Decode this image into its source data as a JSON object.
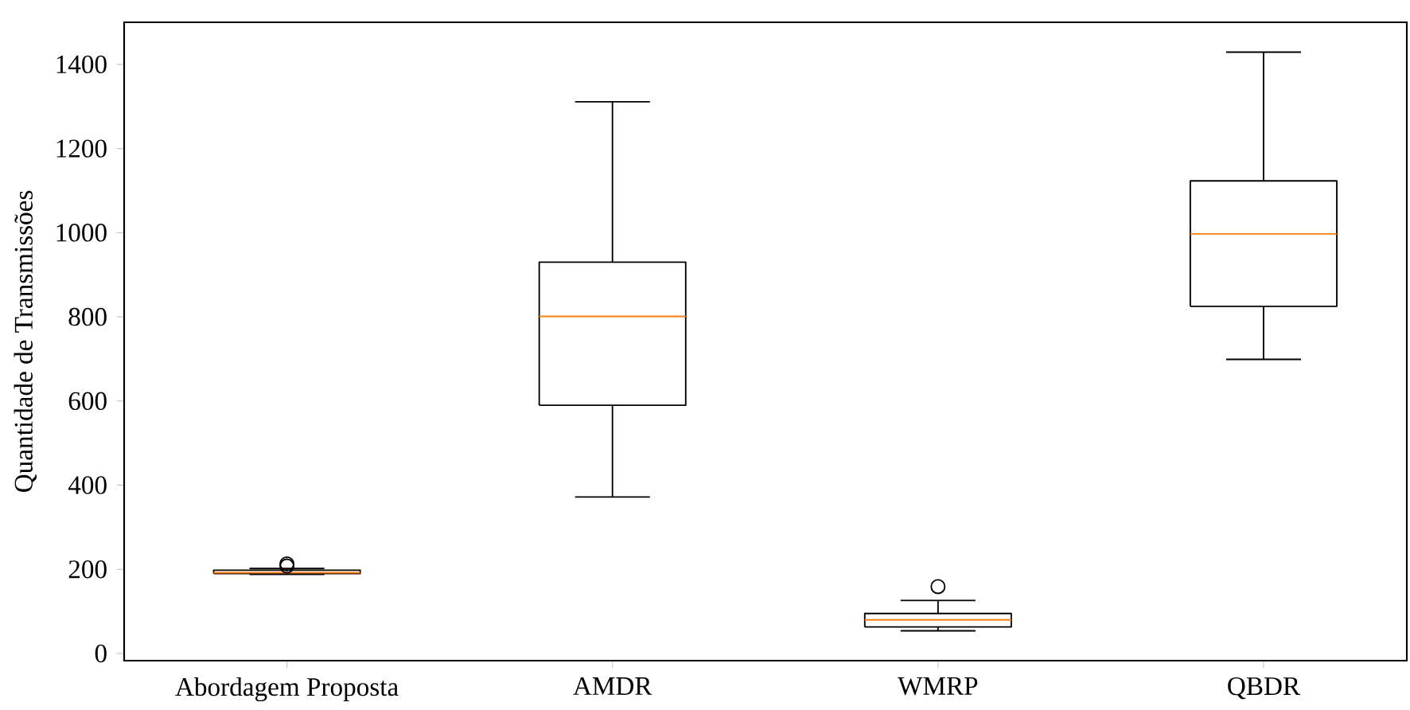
{
  "chart_data": {
    "type": "box",
    "ylabel": "Quantidade de Transmissões",
    "categories": [
      "Abordagem Proposta",
      "AMDR",
      "WMRP",
      "QBDR"
    ],
    "boxes": [
      {
        "low": 188,
        "q1": 190,
        "median": 192,
        "q3": 198,
        "high": 202,
        "outliers": [
          208,
          213
        ]
      },
      {
        "low": 372,
        "q1": 590,
        "median": 801,
        "q3": 930,
        "high": 1311
      },
      {
        "low": 54,
        "q1": 63,
        "median": 80,
        "q3": 95,
        "high": 126,
        "outliers": [
          159
        ]
      },
      {
        "low": 699,
        "q1": 825,
        "median": 997,
        "q3": 1123,
        "high": 1429
      }
    ],
    "ylim": [
      -17,
      1500
    ],
    "yticks": [
      0,
      200,
      400,
      600,
      800,
      1000,
      1200,
      1400
    ],
    "grid": false
  }
}
